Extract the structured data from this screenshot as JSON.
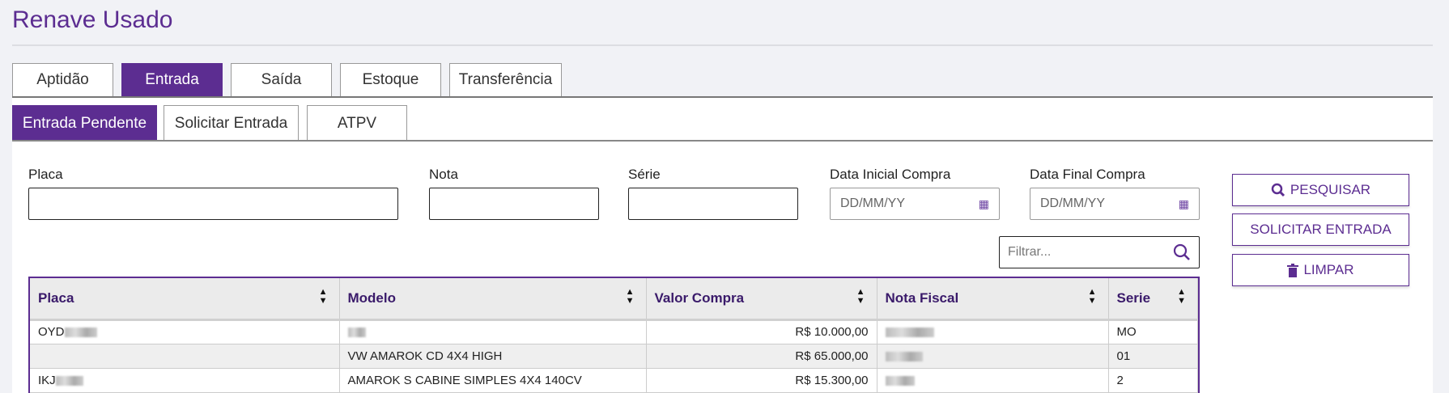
{
  "title": "Renave Usado",
  "tabs": [
    "Aptidão",
    "Entrada",
    "Saída",
    "Estoque",
    "Transferência"
  ],
  "active_tab": "Entrada",
  "subtabs": [
    "Entrada Pendente",
    "Solicitar Entrada",
    "ATPV"
  ],
  "active_subtab": "Entrada Pendente",
  "form": {
    "placa_label": "Placa",
    "nota_label": "Nota",
    "serie_label": "Série",
    "data_inicial_label": "Data Inicial Compra",
    "data_final_label": "Data Final Compra",
    "date_placeholder": "DD/MM/YY"
  },
  "buttons": {
    "pesquisar": "PESQUISAR",
    "solicitar": "SOLICITAR ENTRADA",
    "limpar": "LIMPAR"
  },
  "filter_placeholder": "Filtrar...",
  "table": {
    "headers": [
      "Placa",
      "Modelo",
      "Valor Compra",
      "Nota Fiscal",
      "Serie"
    ],
    "rows": [
      {
        "placa": "OYD",
        "modelo": "",
        "valor": "R$ 10.000,00",
        "nota": "",
        "serie": "MO"
      },
      {
        "placa": "",
        "modelo": "VW AMAROK CD 4X4 HIGH",
        "valor": "R$ 65.000,00",
        "nota": "",
        "serie": "01"
      },
      {
        "placa": "IKJ",
        "modelo": "AMAROK S CABINE SIMPLES 4X4 140CV",
        "valor": "R$ 15.300,00",
        "nota": "",
        "serie": "2"
      }
    ]
  },
  "colors": {
    "accent": "#5c2d91",
    "background": "#f1f2f6"
  }
}
